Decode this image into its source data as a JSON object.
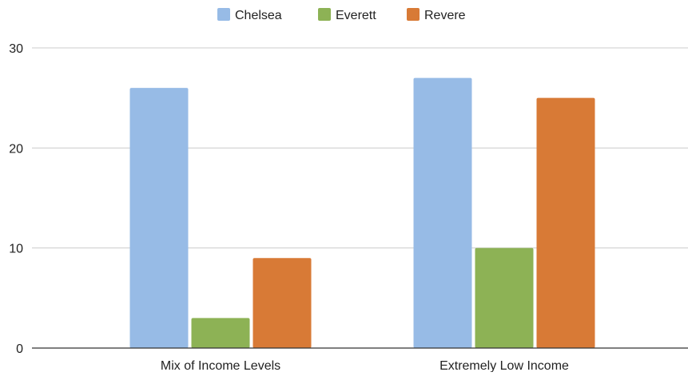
{
  "chart_data": {
    "type": "bar",
    "title": "",
    "xlabel": "",
    "ylabel": "",
    "categories": [
      "Mix of Income Levels",
      "Extremely Low Income"
    ],
    "series": [
      {
        "name": "Chelsea",
        "color": "#97bbe6",
        "values": [
          26,
          27
        ]
      },
      {
        "name": "Everett",
        "color": "#8db255",
        "values": [
          3,
          10
        ]
      },
      {
        "name": "Revere",
        "color": "#d87a36",
        "values": [
          9,
          25
        ]
      }
    ],
    "ylim": [
      0,
      30
    ],
    "yticks": [
      0,
      10,
      20,
      30
    ],
    "grid": true,
    "legend": "top-center"
  }
}
